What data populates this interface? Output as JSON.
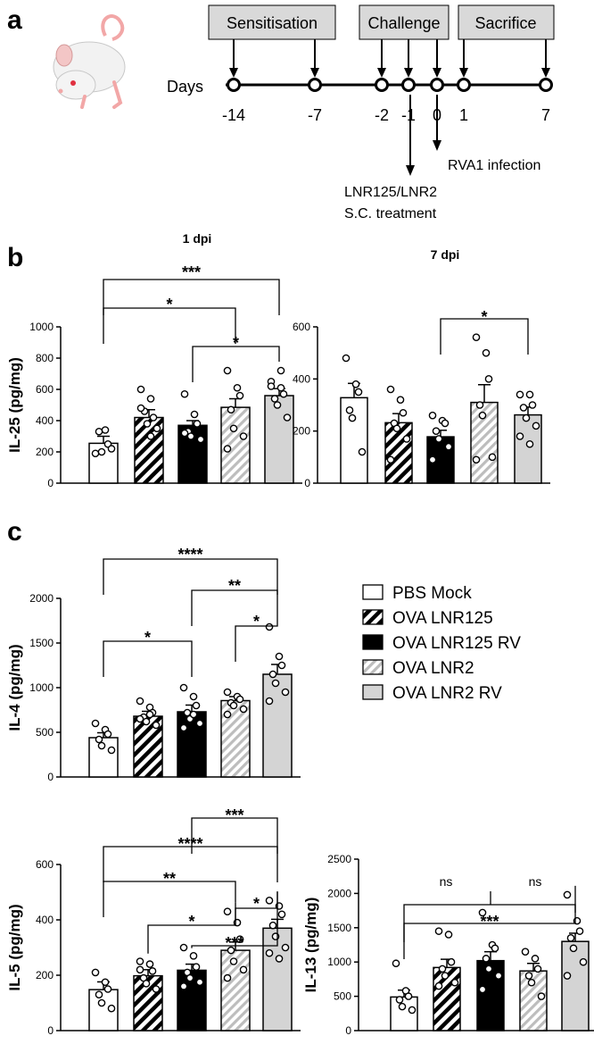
{
  "panel_labels": {
    "a": "a",
    "b": "b",
    "c": "c"
  },
  "timeline": {
    "phases": [
      "Sensitisation",
      "Challenge",
      "Sacrifice"
    ],
    "days_label": "Days",
    "days": [
      "-14",
      "-7",
      "-2",
      "-1",
      "0",
      "1",
      "7"
    ],
    "treatment_note_1": "LNR125/LNR2",
    "treatment_note_2": "S.C. treatment",
    "infection_note": "RVA1 infection"
  },
  "legend": {
    "entries": [
      "PBS Mock",
      "OVA LNR125",
      "OVA LNR125 RV",
      "OVA LNR2",
      "OVA LNR2 RV"
    ]
  },
  "colors": {
    "black": "#000000",
    "grey": "#d4d4d4",
    "white": "#ffffff",
    "axis": "#000000"
  },
  "chart_data": [
    {
      "id": "il25_1dpi",
      "type": "bar",
      "title": "1 dpi",
      "ylabel": "IL-25 (pg/mg)",
      "ylim": [
        0,
        1000
      ],
      "yticks": [
        "0",
        "200",
        "400",
        "600",
        "800",
        "1000"
      ],
      "categories": [
        "PBS Mock",
        "OVA LNR125",
        "OVA LNR125 RV",
        "OVA LNR2",
        "OVA LNR2 RV"
      ],
      "values": [
        255,
        420,
        370,
        485,
        560
      ],
      "sem": [
        45,
        50,
        30,
        55,
        45
      ],
      "points": [
        [
          190,
          340,
          250,
          330,
          200,
          220
        ],
        [
          600,
          540,
          420,
          460,
          380,
          350,
          480,
          300
        ],
        [
          570,
          440,
          380,
          330,
          300,
          280,
          320
        ],
        [
          720,
          610,
          560,
          470,
          350,
          300,
          220
        ],
        [
          650,
          610,
          570,
          540,
          500,
          420,
          620,
          720
        ]
      ],
      "significance": [
        {
          "from": 0,
          "to": 4,
          "label": "***"
        },
        {
          "from": 0,
          "to": 3,
          "label": "*"
        },
        {
          "from": 2,
          "to": 4,
          "label": "*"
        }
      ]
    },
    {
      "id": "il25_7dpi",
      "type": "bar",
      "title": "7 dpi",
      "ylabel": "",
      "ylim": [
        0,
        600
      ],
      "yticks": [
        "0",
        "200",
        "400",
        "600"
      ],
      "categories": [
        "PBS Mock",
        "OVA LNR125",
        "OVA LNR125 RV",
        "OVA LNR2",
        "OVA LNR2 RV"
      ],
      "values": [
        328,
        232,
        178,
        310,
        262
      ],
      "sem": [
        55,
        35,
        25,
        68,
        30
      ],
      "points": [
        [
          480,
          380,
          350,
          280,
          250,
          120
        ],
        [
          360,
          320,
          270,
          230,
          210,
          170,
          90
        ],
        [
          260,
          240,
          230,
          200,
          170,
          140,
          90
        ],
        [
          560,
          500,
          400,
          300,
          260,
          100,
          90
        ],
        [
          340,
          340,
          300,
          290,
          250,
          220,
          180,
          150
        ]
      ],
      "significance": [
        {
          "from": 2,
          "to": 4,
          "label": "*"
        }
      ]
    },
    {
      "id": "il4",
      "type": "bar",
      "title": "",
      "ylabel": "IL-4 (pg/mg)",
      "ylim": [
        0,
        2000
      ],
      "yticks": [
        "0",
        "500",
        "1000",
        "1500",
        "2000"
      ],
      "categories": [
        "PBS Mock",
        "OVA LNR125",
        "OVA LNR125 RV",
        "OVA LNR2",
        "OVA LNR2 RV"
      ],
      "values": [
        440,
        680,
        730,
        855,
        1150
      ],
      "sem": [
        55,
        55,
        75,
        45,
        110
      ],
      "points": [
        [
          600,
          530,
          480,
          420,
          350,
          300
        ],
        [
          850,
          780,
          720,
          670,
          620,
          580,
          650,
          700
        ],
        [
          1000,
          900,
          800,
          720,
          650,
          600,
          550,
          700
        ],
        [
          950,
          900,
          870,
          830,
          800,
          760,
          700
        ],
        [
          1680,
          1350,
          1250,
          1150,
          1050,
          950,
          850
        ]
      ],
      "significance": [
        {
          "from": 0,
          "to": 4,
          "label": "****"
        },
        {
          "from": 2,
          "to": 4,
          "label": "**"
        },
        {
          "from": 3,
          "to": 4,
          "label": "*"
        },
        {
          "from": 0,
          "to": 2,
          "label": "*"
        }
      ]
    },
    {
      "id": "il5",
      "type": "bar",
      "title": "",
      "ylabel": "IL-5 (pg/mg)",
      "ylim": [
        0,
        600
      ],
      "yticks": [
        "0",
        "200",
        "400",
        "600"
      ],
      "categories": [
        "PBS Mock",
        "OVA LNR125",
        "OVA LNR125 RV",
        "OVA LNR2",
        "OVA LNR2 RV"
      ],
      "values": [
        148,
        198,
        218,
        290,
        370
      ],
      "sem": [
        28,
        22,
        22,
        30,
        32
      ],
      "points": [
        [
          210,
          175,
          150,
          130,
          100,
          80
        ],
        [
          250,
          240,
          215,
          190,
          170,
          150,
          220
        ],
        [
          300,
          270,
          230,
          210,
          190,
          175,
          160
        ],
        [
          430,
          390,
          330,
          290,
          250,
          220,
          190
        ],
        [
          470,
          450,
          420,
          380,
          340,
          300,
          280,
          260
        ]
      ],
      "significance": [
        {
          "from": 2,
          "to": 4,
          "label": "***"
        },
        {
          "from": 0,
          "to": 4,
          "label": "****"
        },
        {
          "from": 0,
          "to": 3,
          "label": "**"
        },
        {
          "from": 3,
          "to": 4,
          "label": "*"
        },
        {
          "from": 1,
          "to": 3,
          "label": "*"
        },
        {
          "from": 2,
          "to": 4,
          "label": "***"
        }
      ]
    },
    {
      "id": "il13",
      "type": "bar",
      "title": "",
      "ylabel": "IL-13 (pg/mg)",
      "ylim": [
        0,
        2500
      ],
      "yticks": [
        "0",
        "500",
        "1000",
        "1500",
        "2000",
        "2500"
      ],
      "categories": [
        "PBS Mock",
        "OVA LNR125",
        "OVA LNR125 RV",
        "OVA LNR2",
        "OVA LNR2 RV"
      ],
      "values": [
        490,
        920,
        1020,
        870,
        1300
      ],
      "sem": [
        100,
        120,
        130,
        110,
        120
      ],
      "points": [
        [
          980,
          580,
          500,
          450,
          350,
          300
        ],
        [
          1450,
          1400,
          1000,
          900,
          800,
          700,
          650
        ],
        [
          1720,
          1250,
          1200,
          1050,
          900,
          800,
          600
        ],
        [
          1150,
          1050,
          900,
          800,
          700,
          500
        ],
        [
          1980,
          1600,
          1450,
          1350,
          1200,
          1000,
          800
        ]
      ],
      "significance": [
        {
          "from": 0,
          "to": 4,
          "label": "***"
        }
      ],
      "ns_labels": [
        {
          "from": 0,
          "to": 2,
          "label": "ns"
        },
        {
          "from": 2,
          "to": 4,
          "label": "ns"
        }
      ]
    }
  ]
}
